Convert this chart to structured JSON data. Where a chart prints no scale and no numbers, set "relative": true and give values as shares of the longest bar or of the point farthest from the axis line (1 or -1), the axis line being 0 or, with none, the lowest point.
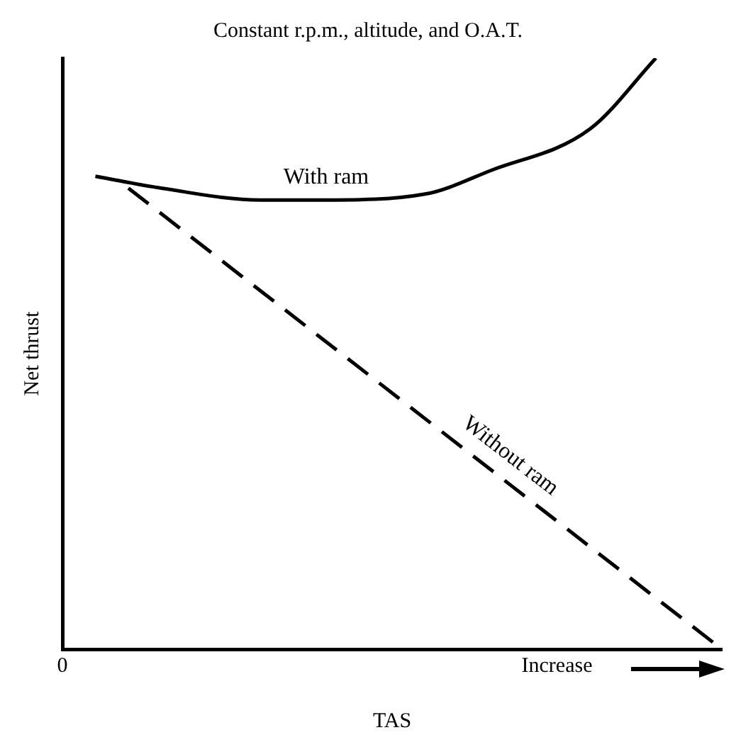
{
  "chart_data": {
    "type": "line",
    "title": "Constant r.p.m., altitude, and O.A.T.",
    "xlabel": "TAS",
    "ylabel": "Net thrust",
    "relative": true,
    "grid": false,
    "legend": false,
    "marker": "none",
    "categories": [
      "0",
      null,
      null,
      null,
      null,
      null,
      null,
      null,
      null,
      null,
      null,
      null,
      null,
      null,
      null,
      "Increase",
      null,
      null,
      null,
      null,
      null
    ],
    "series": [
      {
        "name": "With ram",
        "color": "#000000",
        "line_style": "solid",
        "values": [
          null,
          0.8,
          null,
          0.78,
          null,
          null,
          0.76,
          null,
          0.76,
          null,
          null,
          0.77,
          null,
          0.81,
          null,
          null,
          0.88,
          null,
          1,
          null,
          null
        ]
      },
      {
        "name": "Without ram",
        "color": "#000000",
        "line_style": "dashed",
        "values": [
          null,
          null,
          0.78,
          null,
          null,
          null,
          null,
          null,
          null,
          null,
          null,
          null,
          null,
          null,
          null,
          null,
          null,
          null,
          null,
          null,
          0
        ]
      }
    ]
  }
}
